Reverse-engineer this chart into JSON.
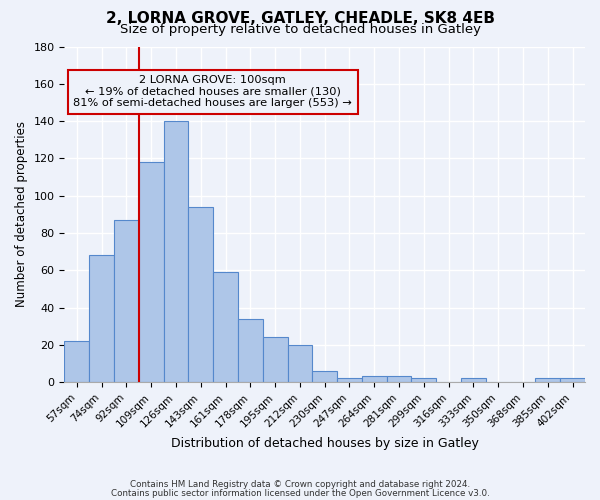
{
  "title": "2, LORNA GROVE, GATLEY, CHEADLE, SK8 4EB",
  "subtitle": "Size of property relative to detached houses in Gatley",
  "xlabel": "Distribution of detached houses by size in Gatley",
  "ylabel": "Number of detached properties",
  "bar_labels": [
    "57sqm",
    "74sqm",
    "92sqm",
    "109sqm",
    "126sqm",
    "143sqm",
    "161sqm",
    "178sqm",
    "195sqm",
    "212sqm",
    "230sqm",
    "247sqm",
    "264sqm",
    "281sqm",
    "299sqm",
    "316sqm",
    "333sqm",
    "350sqm",
    "368sqm",
    "385sqm",
    "402sqm"
  ],
  "bar_heights": [
    22,
    68,
    87,
    118,
    140,
    94,
    59,
    34,
    24,
    20,
    6,
    2,
    3,
    3,
    2,
    0,
    2,
    0,
    0,
    2,
    2
  ],
  "bar_color": "#aec6e8",
  "bar_edge_color": "#5588cc",
  "annotation_title": "2 LORNA GROVE: 100sqm",
  "annotation_line1": "← 19% of detached houses are smaller (130)",
  "annotation_line2": "81% of semi-detached houses are larger (553) →",
  "annotation_box_edge": "#cc0000",
  "ref_line_color": "#cc0000",
  "ylim": [
    0,
    180
  ],
  "yticks": [
    0,
    20,
    40,
    60,
    80,
    100,
    120,
    140,
    160,
    180
  ],
  "footer_line1": "Contains HM Land Registry data © Crown copyright and database right 2024.",
  "footer_line2": "Contains public sector information licensed under the Open Government Licence v3.0.",
  "bg_color": "#eef2fa",
  "grid_color": "#ffffff",
  "title_fontsize": 11,
  "subtitle_fontsize": 9.5
}
